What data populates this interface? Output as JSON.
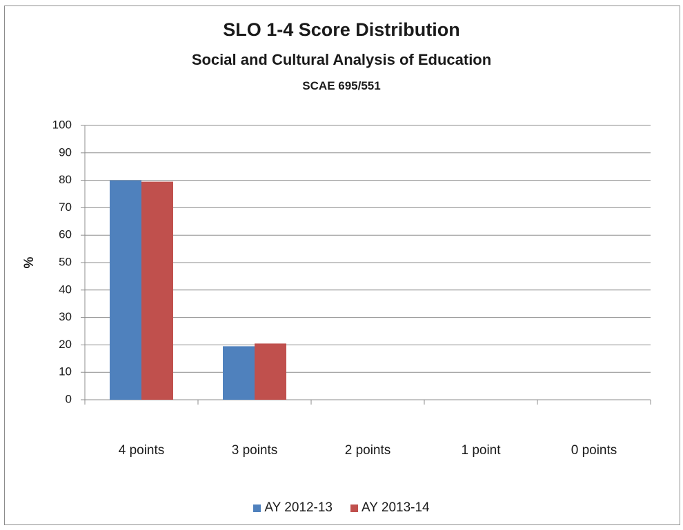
{
  "chart_data": {
    "type": "bar",
    "title": "SLO 1-4 Score Distribution",
    "subtitle": "Social and Cultural Analysis of Education",
    "subtitle2": "SCAE 695/551",
    "xlabel": "",
    "ylabel": "%",
    "ylim": [
      0,
      100
    ],
    "yticks": [
      0,
      10,
      20,
      30,
      40,
      50,
      60,
      70,
      80,
      90,
      100
    ],
    "grid": true,
    "legend_position": "bottom",
    "categories": [
      "4 points",
      "3 points",
      "2 points",
      "1 point",
      "0 points"
    ],
    "series": [
      {
        "name": "AY 2012-13",
        "color": "#4f81bd",
        "values": [
          80,
          19.5,
          0,
          0,
          0
        ]
      },
      {
        "name": "AY 2013-14",
        "color": "#c0504d",
        "values": [
          79.5,
          20.5,
          0,
          0,
          0
        ]
      }
    ]
  }
}
